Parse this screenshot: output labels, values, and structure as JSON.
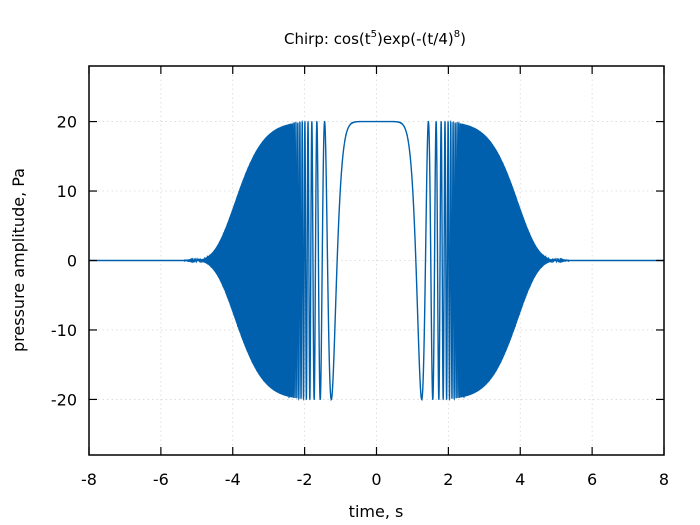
{
  "chart_data": {
    "type": "line",
    "title": {
      "prefix": "Chirp: cos(t",
      "exp1": "5",
      "middle": ")exp(-(t/4)",
      "exp2": "8",
      "suffix": ")"
    },
    "xlabel": "time, s",
    "ylabel": "pressure amplitude, Pa",
    "xlim": [
      -8,
      8
    ],
    "ylim": [
      -28,
      28
    ],
    "xticks": [
      -8,
      -6,
      -4,
      -2,
      0,
      2,
      4,
      6,
      8
    ],
    "yticks": [
      -20,
      -10,
      0,
      10,
      20
    ],
    "grid": true,
    "line_color": "#0060ad",
    "series": [
      {
        "function": "20*cos(t^5)*exp(-(t/4)^8)",
        "amplitude": 20,
        "t_range": [
          -8,
          8
        ]
      }
    ]
  }
}
